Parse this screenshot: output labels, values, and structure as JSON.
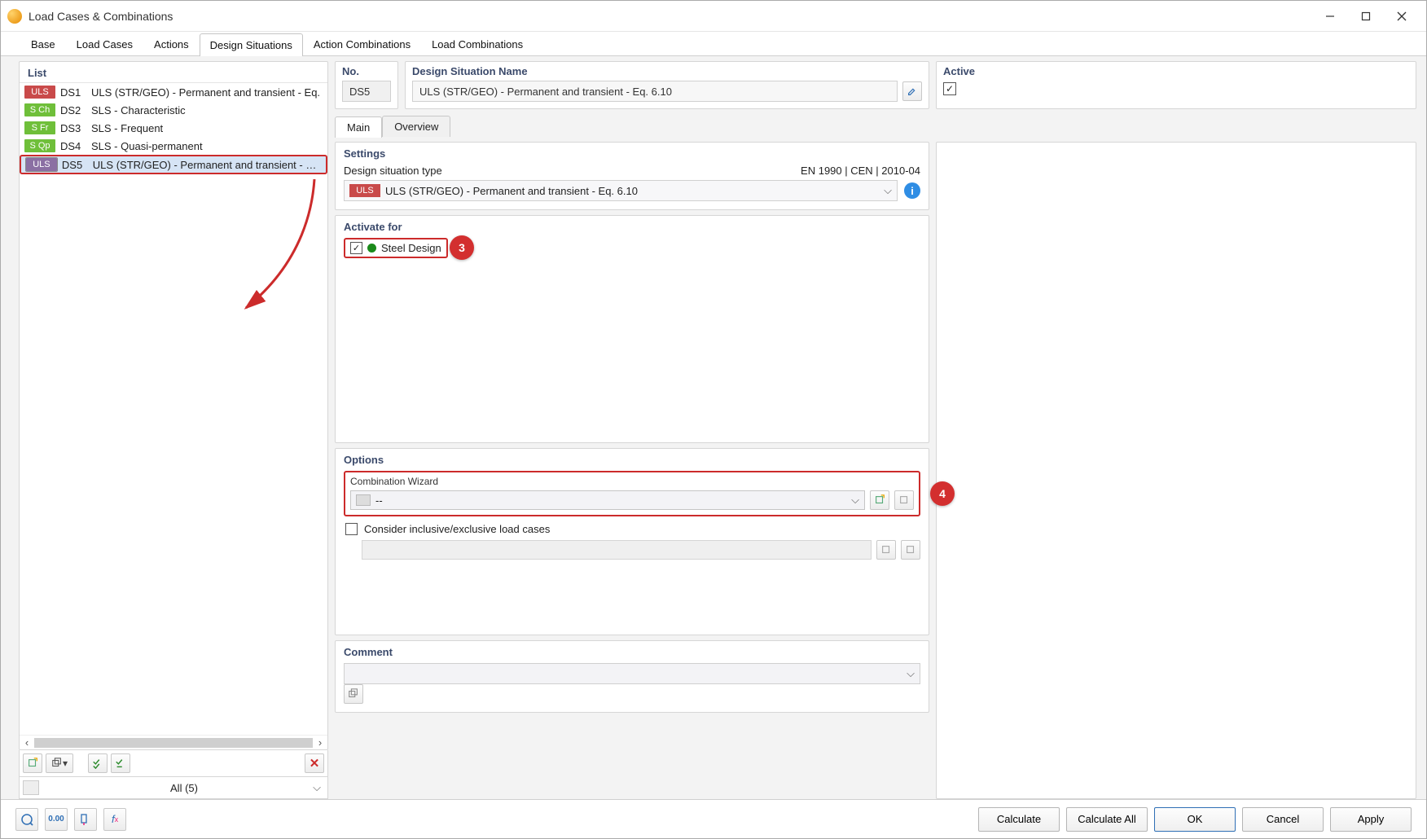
{
  "window": {
    "title": "Load Cases & Combinations"
  },
  "tabs": [
    "Base",
    "Load Cases",
    "Actions",
    "Design Situations",
    "Action Combinations",
    "Load Combinations"
  ],
  "active_tab_index": 3,
  "list": {
    "header": "List",
    "items": [
      {
        "tag": "ULS",
        "tag_bg": "#c94a4a",
        "code": "DS1",
        "label": "ULS (STR/GEO) - Permanent and transient - Eq."
      },
      {
        "tag": "S Ch",
        "tag_bg": "#6fbf3a",
        "code": "DS2",
        "label": "SLS - Characteristic"
      },
      {
        "tag": "S Fr",
        "tag_bg": "#6fbf3a",
        "code": "DS3",
        "label": "SLS - Frequent"
      },
      {
        "tag": "S Qp",
        "tag_bg": "#6fbf3a",
        "code": "DS4",
        "label": "SLS - Quasi-permanent"
      },
      {
        "tag": "ULS",
        "tag_bg": "#8b6fa3",
        "code": "DS5",
        "label": "ULS (STR/GEO) - Permanent and transient - Eq."
      }
    ],
    "selected_index": 4,
    "filter_text": "All (5)"
  },
  "header_fields": {
    "no_label": "No.",
    "no_value": "DS5",
    "name_label": "Design Situation Name",
    "name_value": "ULS (STR/GEO) - Permanent and transient - Eq. 6.10",
    "active_label": "Active",
    "active_checked": true
  },
  "inner_tabs": [
    "Main",
    "Overview"
  ],
  "inner_active_index": 0,
  "settings": {
    "title": "Settings",
    "row_label": "Design situation type",
    "row_right": "EN 1990 | CEN | 2010-04",
    "type_tag": "ULS",
    "type_tag_bg": "#c94a4a",
    "type_text": "ULS (STR/GEO) - Permanent and transient - Eq. 6.10"
  },
  "activate": {
    "title": "Activate for",
    "checkbox_label": "Steel Design",
    "checked": true,
    "callout_number": "3"
  },
  "options": {
    "title": "Options",
    "wizard_label": "Combination Wizard",
    "wizard_value": "--",
    "consider_label": "Consider inclusive/exclusive load cases",
    "consider_checked": false,
    "callout_number": "4"
  },
  "comment": {
    "title": "Comment",
    "value": ""
  },
  "footer": {
    "calculate": "Calculate",
    "calculate_all": "Calculate All",
    "ok": "OK",
    "cancel": "Cancel",
    "apply": "Apply"
  },
  "colors": {
    "highlight_border": "#cc2b2b",
    "callout_bg": "#d32f2f",
    "panel_header_text": "#3b4a6b"
  }
}
